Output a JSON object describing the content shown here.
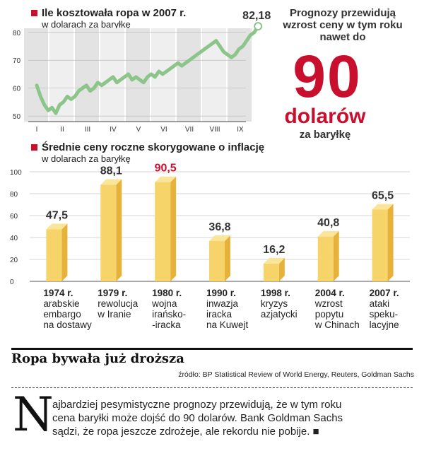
{
  "line_chart": {
    "title": "Ile kosztowała ropa w 2007 r.",
    "subtitle": "w dolarach za baryłkę",
    "last_value_label": "82,18"
  },
  "bar_chart": {
    "title": "Średnie ceny roczne skorygowane o inflację",
    "subtitle": "w dolarach za baryłkę"
  },
  "forecast": {
    "line1": "Prognozy przewidują",
    "line2": "wzrost ceny w tym roku",
    "line3": "nawet do",
    "number": "90",
    "unit": "dolarów",
    "per": "za baryłkę"
  },
  "footer": {
    "title": "Ropa bywała już droższa",
    "source": "źródło: BP Statistical Review of World Energy, Reuters, Goldman Sachs",
    "drop_cap": "N",
    "text_line1": "ajbardziej pesymistyczne prognozy przewidują, że w tym roku",
    "text_line2": "cena baryłki może dojść do 90 dolarów. Bank Goldman Sachs",
    "text_line3": "sądzi, że ropa jeszcze zdrożeje, ale rekordu nie pobije. ■"
  },
  "colors": {
    "accent": "#c8102e",
    "bar": "#f7d46a",
    "bar_side": "#e7b23a",
    "bar_top": "#fbe59a",
    "line": "#8cc58a",
    "line_area": "#dcdcdc"
  },
  "chart_data": [
    {
      "type": "line",
      "title": "Ile kosztowała ropa w 2007 r.",
      "ylabel": "w dolarach za baryłkę",
      "categories": [
        "I",
        "II",
        "III",
        "IV",
        "V",
        "VI",
        "VII",
        "VIII",
        "IX"
      ],
      "yticks": [
        50,
        60,
        70,
        80
      ],
      "ylim": [
        48,
        84
      ],
      "x": [
        0,
        0.15,
        0.3,
        0.45,
        0.6,
        0.75,
        0.9,
        1.05,
        1.2,
        1.35,
        1.5,
        1.65,
        1.8,
        1.95,
        2.1,
        2.25,
        2.4,
        2.55,
        2.7,
        2.85,
        3.0,
        3.15,
        3.3,
        3.45,
        3.6,
        3.75,
        3.9,
        4.05,
        4.2,
        4.35,
        4.5,
        4.65,
        4.8,
        4.95,
        5.1,
        5.25,
        5.4,
        5.55,
        5.7,
        5.85,
        6.0,
        6.15,
        6.3,
        6.45,
        6.6,
        6.75,
        6.9,
        7.05,
        7.2,
        7.35,
        7.5,
        7.65,
        7.8,
        7.95,
        8.1,
        8.25,
        8.4,
        8.55,
        8.7
      ],
      "values": [
        61,
        57,
        54,
        52,
        53,
        51,
        54,
        55,
        57,
        56,
        57,
        59,
        60,
        61,
        59,
        60,
        62,
        61,
        62,
        63,
        64,
        62,
        63,
        64,
        65,
        63,
        64,
        63,
        62,
        64,
        65,
        64,
        66,
        65,
        66,
        67,
        68,
        69,
        68,
        69,
        70,
        71,
        72,
        73,
        74,
        75,
        76,
        77,
        75,
        73,
        72,
        71,
        72,
        74,
        75,
        77,
        79,
        80,
        82.18
      ],
      "last_value": 82.18
    },
    {
      "type": "bar",
      "title": "Średnie ceny roczne skorygowane o inflację",
      "ylabel": "w dolarach za baryłkę",
      "ylim": [
        0,
        100
      ],
      "yticks": [
        0,
        20,
        40,
        60,
        80,
        100
      ],
      "categories": [
        "1974 r.",
        "1979 r.",
        "1980 r.",
        "1990 r.",
        "1998 r.",
        "2004 r.",
        "2007 r."
      ],
      "values": [
        47.5,
        88.1,
        90.5,
        36.8,
        16.2,
        40.8,
        65.5
      ],
      "value_labels": [
        "47,5",
        "88,1",
        "90,5",
        "36,8",
        "16,2",
        "40,8",
        "65,5"
      ],
      "highlight_index": 2,
      "events": [
        "arabskie\nembargo\nna dostawy",
        "rewolucja\nw Iranie",
        "wojna\nirańsko-\n-iracka",
        "inwazja\niracka\nna Kuwejt",
        "kryzys\nazjatycki",
        "wzrost\npopytu\nw Chinach",
        "ataki\nspeku-\nlacyjne"
      ]
    }
  ]
}
